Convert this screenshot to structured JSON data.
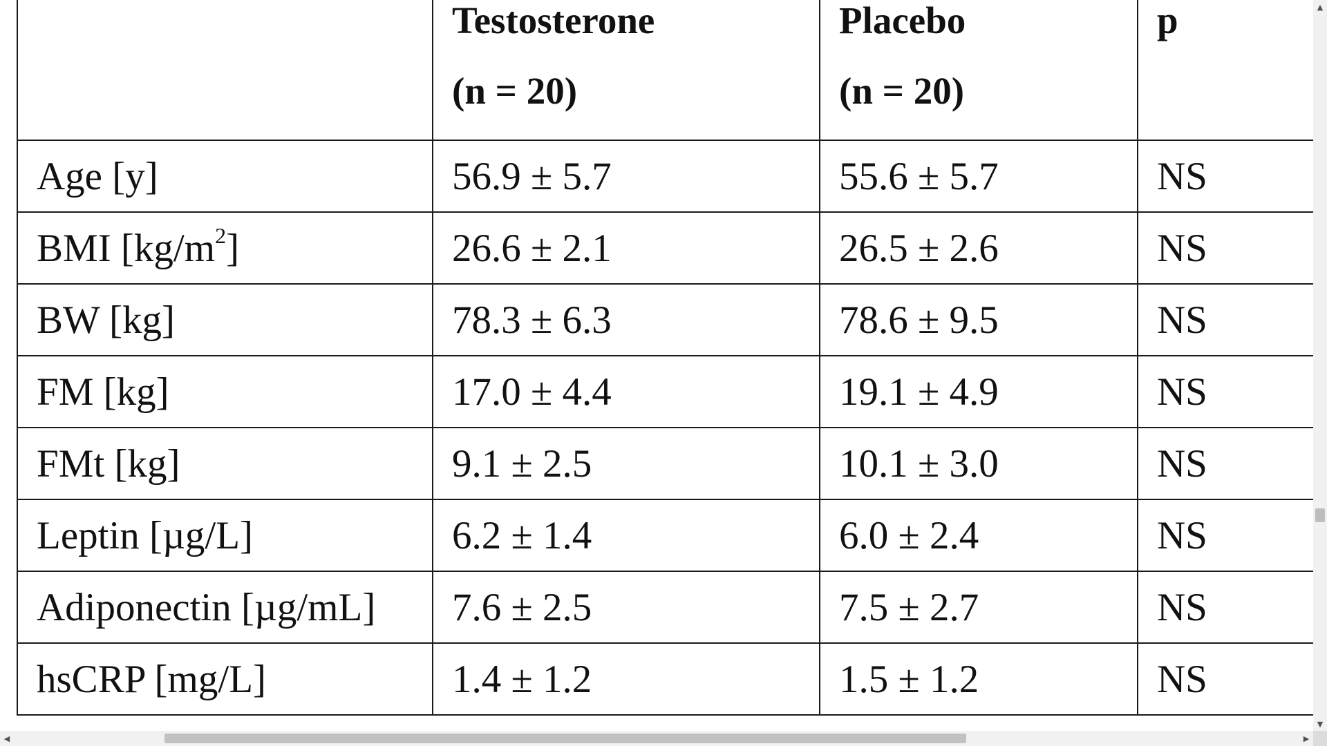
{
  "table": {
    "headers": [
      {
        "line1": "",
        "line2": ""
      },
      {
        "line1": "Testosterone",
        "line2": "(n = 20)"
      },
      {
        "line1": "Placebo",
        "line2": "(n = 20)"
      },
      {
        "line1": "p",
        "line2": ""
      }
    ],
    "rows": [
      {
        "label": "Age [y]",
        "testosterone": "56.9 ± 5.7",
        "placebo": "55.6 ± 5.7",
        "p": "NS"
      },
      {
        "label_pre": "BMI [kg/m",
        "label_sup": "2",
        "label_post": "]",
        "testosterone": "26.6 ± 2.1",
        "placebo": "26.5 ± 2.6",
        "p": "NS"
      },
      {
        "label": "BW [kg]",
        "testosterone": "78.3 ± 6.3",
        "placebo": "78.6 ± 9.5",
        "p": "NS"
      },
      {
        "label": "FM [kg]",
        "testosterone": "17.0 ± 4.4",
        "placebo": "19.1 ± 4.9",
        "p": "NS"
      },
      {
        "label": "FMt [kg]",
        "testosterone": "9.1 ± 2.5",
        "placebo": "10.1 ± 3.0",
        "p": "NS"
      },
      {
        "label": "Leptin [µg/L]",
        "testosterone": "6.2 ± 1.4",
        "placebo": "6.0 ± 2.4",
        "p": "NS"
      },
      {
        "label": "Adiponectin [µg/mL]",
        "testosterone": "7.6 ± 2.5",
        "placebo": "7.5 ± 2.7",
        "p": "NS"
      },
      {
        "label": "hsCRP [mg/L]",
        "testosterone": "1.4 ± 1.2",
        "placebo": "1.5 ± 1.2",
        "p": "NS"
      }
    ]
  },
  "scrollbars": {
    "up_arrow": "▲",
    "down_arrow": "▼",
    "left_arrow": "◀",
    "right_arrow": "▶",
    "vertical_position": 0.7,
    "horizontal_position": 0.16
  }
}
